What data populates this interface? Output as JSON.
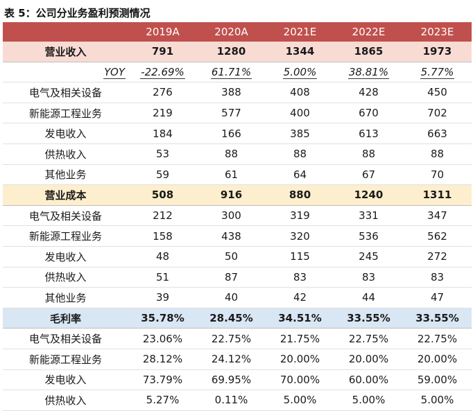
{
  "title": "表 5：公司分业务盈利预测情况",
  "header": [
    "",
    "2019A",
    "2020A",
    "2021E",
    "2022E",
    "2023E"
  ],
  "revenue": {
    "label": "营业收入",
    "values": [
      "791",
      "1280",
      "1344",
      "1865",
      "1973"
    ],
    "yoy_label": "YOY",
    "yoy": [
      "-22.69%",
      "61.71%",
      "5.00%",
      "38.81%",
      "5.77%"
    ],
    "items": [
      {
        "label": "电气及相关设备",
        "values": [
          "276",
          "388",
          "408",
          "428",
          "450"
        ]
      },
      {
        "label": "新能源工程业务",
        "values": [
          "219",
          "577",
          "400",
          "670",
          "702"
        ]
      },
      {
        "label": "发电收入",
        "values": [
          "184",
          "166",
          "385",
          "613",
          "663"
        ]
      },
      {
        "label": "供热收入",
        "values": [
          "53",
          "88",
          "88",
          "88",
          "88"
        ]
      },
      {
        "label": "其他业务",
        "values": [
          "59",
          "61",
          "64",
          "67",
          "70"
        ]
      }
    ]
  },
  "cost": {
    "label": "营业成本",
    "values": [
      "508",
      "916",
      "880",
      "1240",
      "1311"
    ],
    "items": [
      {
        "label": "电气及相关设备",
        "values": [
          "212",
          "300",
          "319",
          "331",
          "347"
        ]
      },
      {
        "label": "新能源工程业务",
        "values": [
          "158",
          "438",
          "320",
          "536",
          "562"
        ]
      },
      {
        "label": "发电收入",
        "values": [
          "48",
          "50",
          "115",
          "245",
          "272"
        ]
      },
      {
        "label": "供热收入",
        "values": [
          "51",
          "87",
          "83",
          "83",
          "83"
        ]
      },
      {
        "label": "其他业务",
        "values": [
          "39",
          "40",
          "42",
          "44",
          "47"
        ]
      }
    ]
  },
  "margin": {
    "label": "毛利率",
    "values": [
      "35.78%",
      "28.45%",
      "34.51%",
      "33.55%",
      "33.55%"
    ],
    "items": [
      {
        "label": "电气及相关设备",
        "values": [
          "23.06%",
          "22.75%",
          "21.75%",
          "22.75%",
          "22.75%"
        ]
      },
      {
        "label": "新能源工程业务",
        "values": [
          "28.12%",
          "24.12%",
          "20.00%",
          "20.00%",
          "20.00%"
        ]
      },
      {
        "label": "发电收入",
        "values": [
          "73.79%",
          "69.95%",
          "70.00%",
          "60.00%",
          "59.00%"
        ]
      },
      {
        "label": "供热收入",
        "values": [
          "5.27%",
          "0.11%",
          "5.00%",
          "5.00%",
          "5.00%"
        ]
      }
    ]
  }
}
